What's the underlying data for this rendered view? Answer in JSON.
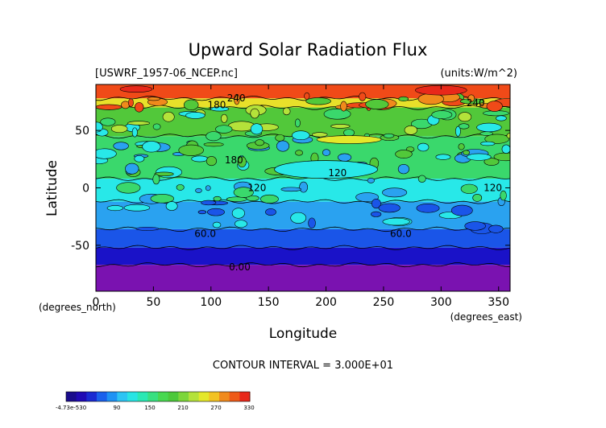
{
  "chart_data": {
    "type": "heatmap",
    "title": "Upward Solar Radiation Flux",
    "file_label": "[USWRF_1957-06_NCEP.nc]",
    "units_label": "(units:W/m^2)",
    "xlabel": "Longitude",
    "ylabel": "Latitude",
    "x_unit_label": "(degrees_east)",
    "y_unit_label": "(degrees_north)",
    "xlim": [
      0,
      360
    ],
    "ylim": [
      -90,
      90
    ],
    "x_ticks": [
      0,
      50,
      100,
      150,
      200,
      250,
      300,
      350
    ],
    "y_ticks": [
      50,
      0,
      -50
    ],
    "contour_interval_text": "CONTOUR INTERVAL = 3.000E+01",
    "contour_labels": [
      {
        "text": "60.0",
        "x": 95,
        "y": -40
      },
      {
        "text": "60.0",
        "x": 265,
        "y": -40
      },
      {
        "text": "0.00",
        "x": 125,
        "y": -69
      },
      {
        "text": "120",
        "x": 210,
        "y": 13
      },
      {
        "text": "120",
        "x": 345,
        "y": 0
      },
      {
        "text": "120",
        "x": 140,
        "y": 0
      },
      {
        "text": "180",
        "x": 120,
        "y": 24
      },
      {
        "text": "180",
        "x": 105,
        "y": 72
      },
      {
        "text": "240",
        "x": 122,
        "y": 78
      },
      {
        "text": "240",
        "x": 330,
        "y": 74
      }
    ],
    "bands": [
      {
        "lat_from": -90,
        "lat_to": -67,
        "color": "#7a12b0",
        "value": "0-30"
      },
      {
        "lat_from": -67,
        "lat_to": -52,
        "color": "#1a12c8",
        "value": "30-60"
      },
      {
        "lat_from": -52,
        "lat_to": -36,
        "color": "#1a55e8",
        "value": "60-90"
      },
      {
        "lat_from": -36,
        "lat_to": -12,
        "color": "#2aa2f0",
        "value": "90-120"
      },
      {
        "lat_from": -12,
        "lat_to": 8,
        "color": "#28e8e8",
        "value": "120-150"
      },
      {
        "lat_from": 8,
        "lat_to": 45,
        "color": "#3ad86c",
        "value": "150-180"
      },
      {
        "lat_from": 45,
        "lat_to": 70,
        "color": "#52c83a",
        "value": "180-210"
      },
      {
        "lat_from": 70,
        "lat_to": 78,
        "color": "#e8e02a",
        "value": "240-270"
      },
      {
        "lat_from": 78,
        "lat_to": 90,
        "color": "#f04a18",
        "value": "300-330"
      }
    ],
    "colorbar": {
      "labels": [
        "-4.73e-530",
        "90",
        "150",
        "210",
        "270",
        "330"
      ],
      "colors": [
        "#1a0c8c",
        "#200ab4",
        "#1a2ad2",
        "#1a60ec",
        "#1e92f4",
        "#2cc4f4",
        "#28e4e4",
        "#2ae8b4",
        "#38e080",
        "#48d850",
        "#4cc83a",
        "#7cd63a",
        "#b4e23a",
        "#e4e82a",
        "#f2c222",
        "#f08a1c",
        "#ee5a18",
        "#e8281a"
      ]
    }
  }
}
